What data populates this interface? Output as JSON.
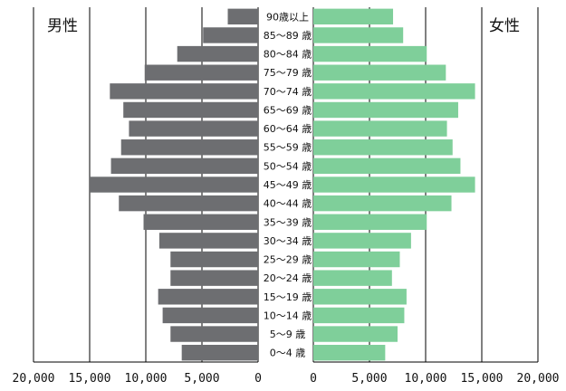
{
  "chart_data": {
    "type": "bar",
    "orientation": "horizontal",
    "layout": "population-pyramid",
    "left_label": "男性",
    "right_label": "女性",
    "xlim": [
      0,
      20000
    ],
    "x_ticks_left": [
      "20,000",
      "15,000",
      "10,000",
      "5,000",
      "0"
    ],
    "x_ticks_right": [
      "0",
      "5,000",
      "10,000",
      "15,000",
      "20,000"
    ],
    "grid": true,
    "colors": {
      "male": "#6d6e71",
      "female": "#7fcf9a",
      "grid": "#000000"
    },
    "categories": [
      "0〜4 歳",
      "5〜9 歳",
      "10〜14 歳",
      "15〜19 歳",
      "20〜24 歳",
      "25〜29 歳",
      "30〜34 歳",
      "35〜39 歳",
      "40〜44 歳",
      "45〜49 歳",
      "50〜54 歳",
      "55〜59 歳",
      "60〜64 歳",
      "65〜69 歳",
      "70〜74 歳",
      "75〜79 歳",
      "80〜84 歳",
      "85〜89 歳",
      "90歳以上"
    ],
    "series": [
      {
        "name": "男性",
        "values": [
          6800,
          7800,
          8500,
          8900,
          7800,
          7800,
          8800,
          10200,
          12400,
          15000,
          13100,
          12200,
          11500,
          12000,
          13200,
          10100,
          7200,
          4900,
          2700
        ]
      },
      {
        "name": "女性",
        "values": [
          6400,
          7500,
          8100,
          8300,
          7000,
          7700,
          8700,
          10100,
          12300,
          14400,
          13100,
          12400,
          11900,
          12900,
          14400,
          11800,
          10100,
          8000,
          7100
        ]
      }
    ]
  }
}
